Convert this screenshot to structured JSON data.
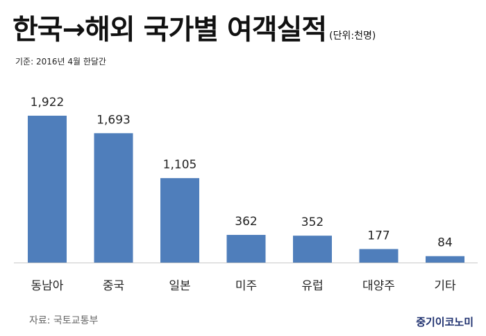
{
  "header": {
    "title": "한국→해외 국가별 여객실적",
    "unit": "(단위:천명)",
    "basis": "기준: 2016년 4월 한달간"
  },
  "footer": {
    "source": "자료: 국토교통부",
    "brand": "중기이코노미"
  },
  "colors": {
    "bar": "#4f7ebb",
    "axis": "#c8c8c8"
  },
  "chart_data": {
    "type": "bar",
    "title": "한국→해외 국가별 여객실적",
    "categories": [
      "동남아",
      "중국",
      "일본",
      "미주",
      "유럽",
      "대양주",
      "기타"
    ],
    "values": [
      1922,
      1693,
      1105,
      362,
      352,
      177,
      84
    ],
    "value_labels": [
      "1,922",
      "1,693",
      "1,105",
      "362",
      "352",
      "177",
      "84"
    ],
    "ylim": [
      0,
      1922
    ],
    "grid": false,
    "legend": "none"
  }
}
